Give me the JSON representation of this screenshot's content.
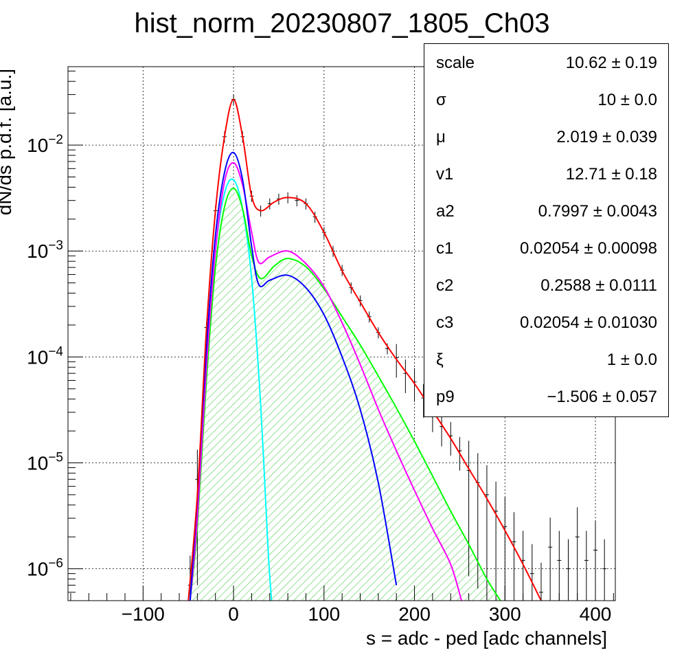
{
  "chart_data": {
    "type": "line",
    "title": "hist_norm_20230807_1805_Ch03",
    "xlabel": "s = adc - ped [adc channels]",
    "ylabel": "dN/ds p.d.f. [a.u.]",
    "xlim": [
      -183,
      422
    ],
    "ylim": [
      5e-07,
      0.055
    ],
    "yscale": "log",
    "grid": true,
    "x_ticks": [
      -100,
      0,
      100,
      200,
      300,
      400
    ],
    "x_tick_labels": [
      "−100",
      "0",
      "100",
      "200",
      "300",
      "400"
    ],
    "y_ticks": [
      {
        "value": 1e-06,
        "base": "10",
        "exp": "−6"
      },
      {
        "value": 1e-05,
        "base": "10",
        "exp": "−5"
      },
      {
        "value": 0.0001,
        "base": "10",
        "exp": "−4"
      },
      {
        "value": 0.001,
        "base": "10",
        "exp": "−3"
      },
      {
        "value": 0.01,
        "base": "10",
        "exp": "−2"
      }
    ],
    "series": [
      {
        "color": "#ff0000",
        "style": "line",
        "points": [
          [
            -50,
            5e-07
          ],
          [
            -40,
            5e-06
          ],
          [
            -30,
            0.00018
          ],
          [
            -20,
            0.0024
          ],
          [
            -10,
            0.012
          ],
          [
            0,
            0.027
          ],
          [
            10,
            0.012
          ],
          [
            20,
            0.0033
          ],
          [
            30,
            0.0024
          ],
          [
            45,
            0.0029
          ],
          [
            60,
            0.0032
          ],
          [
            80,
            0.0028
          ],
          [
            100,
            0.0015
          ],
          [
            120,
            0.00065
          ],
          [
            140,
            0.00033
          ],
          [
            160,
            0.00017
          ],
          [
            180,
            9.5e-05
          ],
          [
            200,
            5.6e-05
          ],
          [
            220,
            3.1e-05
          ],
          [
            240,
            1.7e-05
          ],
          [
            260,
            8.8e-06
          ],
          [
            280,
            4.6e-06
          ],
          [
            300,
            2.3e-06
          ],
          [
            320,
            1.1e-06
          ],
          [
            340,
            5e-07
          ]
        ]
      },
      {
        "color": "#0000ff",
        "style": "line",
        "points": [
          [
            -48,
            5e-07
          ],
          [
            -40,
            4.5e-06
          ],
          [
            -30,
            0.00012
          ],
          [
            -20,
            0.0014
          ],
          [
            -10,
            0.0055
          ],
          [
            0,
            0.0085
          ],
          [
            10,
            0.0047
          ],
          [
            20,
            0.0011
          ],
          [
            28,
            0.00048
          ],
          [
            40,
            0.00053
          ],
          [
            60,
            0.00059
          ],
          [
            80,
            0.00045
          ],
          [
            100,
            0.00025
          ],
          [
            120,
            0.0001
          ],
          [
            140,
            3.2e-05
          ],
          [
            160,
            6.5e-06
          ],
          [
            180,
            7e-07
          ]
        ]
      },
      {
        "color": "#ff00ff",
        "style": "line",
        "points": [
          [
            -48,
            5e-07
          ],
          [
            -40,
            3e-06
          ],
          [
            -30,
            8e-05
          ],
          [
            -20,
            0.001
          ],
          [
            -10,
            0.0045
          ],
          [
            0,
            0.0068
          ],
          [
            10,
            0.0042
          ],
          [
            20,
            0.0015
          ],
          [
            28,
            0.00078
          ],
          [
            40,
            0.00088
          ],
          [
            60,
            0.001
          ],
          [
            80,
            0.00076
          ],
          [
            100,
            0.00046
          ],
          [
            120,
            0.00021
          ],
          [
            140,
            8.5e-05
          ],
          [
            160,
            3.2e-05
          ],
          [
            180,
            1.3e-05
          ],
          [
            200,
            5.5e-06
          ],
          [
            220,
            2.4e-06
          ],
          [
            240,
            1.1e-06
          ],
          [
            252,
            5e-07
          ]
        ]
      },
      {
        "color": "#00ff00",
        "style": "line",
        "points": [
          [
            -48,
            5e-07
          ],
          [
            -40,
            2.5e-06
          ],
          [
            -30,
            6e-05
          ],
          [
            -20,
            0.0007
          ],
          [
            -10,
            0.0026
          ],
          [
            0,
            0.0039
          ],
          [
            10,
            0.0025
          ],
          [
            20,
            0.0009
          ],
          [
            30,
            0.00055
          ],
          [
            45,
            0.00072
          ],
          [
            60,
            0.00085
          ],
          [
            80,
            0.00071
          ],
          [
            100,
            0.00044
          ],
          [
            120,
            0.00024
          ],
          [
            140,
            0.00013
          ],
          [
            160,
            6.6e-05
          ],
          [
            180,
            3.3e-05
          ],
          [
            200,
            1.6e-05
          ],
          [
            220,
            7.5e-06
          ],
          [
            240,
            3.5e-06
          ],
          [
            260,
            1.7e-06
          ],
          [
            280,
            8e-07
          ],
          [
            295,
            5e-07
          ]
        ]
      },
      {
        "color": "#00ffff",
        "style": "line",
        "points": [
          [
            -50,
            5e-07
          ],
          [
            -40,
            3.5e-06
          ],
          [
            -30,
            8e-05
          ],
          [
            -20,
            0.001
          ],
          [
            -10,
            0.0035
          ],
          [
            0,
            0.0047
          ],
          [
            10,
            0.0025
          ],
          [
            20,
            0.00055
          ],
          [
            30,
            3.5e-05
          ],
          [
            38,
            1.6e-06
          ],
          [
            42,
            5e-07
          ]
        ]
      },
      {
        "color": "#000000",
        "style": "errorbars",
        "points": [
          [
            -48,
            7e-07
          ],
          [
            -40,
            7e-06
          ],
          [
            -30,
            0.00019
          ],
          [
            -20,
            0.0024
          ],
          [
            -10,
            0.012
          ],
          [
            0,
            0.027
          ],
          [
            10,
            0.012
          ],
          [
            20,
            0.0033
          ],
          [
            30,
            0.0024
          ],
          [
            40,
            0.0028
          ],
          [
            50,
            0.0031
          ],
          [
            60,
            0.0032
          ],
          [
            70,
            0.003
          ],
          [
            80,
            0.0028
          ],
          [
            90,
            0.0021
          ],
          [
            100,
            0.0015
          ],
          [
            110,
            0.001
          ],
          [
            120,
            0.00066
          ],
          [
            130,
            0.00045
          ],
          [
            140,
            0.00034
          ],
          [
            150,
            0.00024
          ],
          [
            160,
            0.00017
          ],
          [
            170,
            0.00012
          ],
          [
            180,
            9.8e-05
          ],
          [
            190,
            7e-05
          ],
          [
            200,
            5.8e-05
          ],
          [
            210,
            4.1e-05
          ],
          [
            220,
            3e-05
          ],
          [
            230,
            2.2e-05
          ],
          [
            240,
            1.8e-05
          ],
          [
            250,
            1.3e-05
          ],
          [
            260,
            8.5e-06
          ],
          [
            270,
            6.5e-06
          ],
          [
            280,
            5e-06
          ],
          [
            290,
            3.5e-06
          ],
          [
            300,
            2.5e-06
          ],
          [
            310,
            1.8e-06
          ],
          [
            320,
            1.2e-06
          ],
          [
            330,
            9e-07
          ],
          [
            340,
            6e-07
          ],
          [
            350,
            1.6e-06
          ],
          [
            360,
            1.2e-06
          ],
          [
            370,
            1e-06
          ],
          [
            380,
            2e-06
          ],
          [
            390,
            1.2e-06
          ],
          [
            400,
            1.5e-06
          ],
          [
            410,
            1e-06
          ]
        ]
      }
    ],
    "hatched_region_series_index": 3,
    "stats": [
      {
        "name": "scale",
        "value": "10.62 ± 0.19"
      },
      {
        "name": "σ",
        "value": "10 ± 0.0"
      },
      {
        "name": "μ",
        "value": "2.019 ± 0.039"
      },
      {
        "name": "v1",
        "value": "12.71 ± 0.18"
      },
      {
        "name": "a2",
        "value": "0.7997 ± 0.0043"
      },
      {
        "name": "c1",
        "value": "0.02054 ± 0.00098"
      },
      {
        "name": "c2",
        "value": "0.2588 ± 0.0111"
      },
      {
        "name": "c3",
        "value": "0.02054 ± 0.01030"
      },
      {
        "name": "ξ",
        "value": "1 ± 0.0"
      },
      {
        "name": "p9",
        "value": "−1.506 ± 0.057"
      }
    ]
  }
}
